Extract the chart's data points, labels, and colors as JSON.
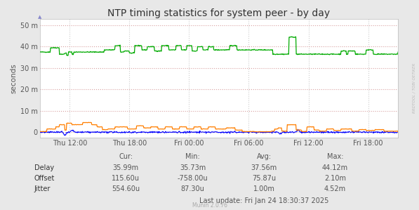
{
  "title": "NTP timing statistics for system peer - by day",
  "ylabel": "seconds",
  "background_color": "#e8e8e8",
  "plot_bg_color": "#ffffff",
  "grid_color_h": "#d8a0a0",
  "grid_color_v": "#cccccc",
  "title_fontsize": 10,
  "axis_fontsize": 7,
  "legend_fontsize": 7,
  "stats_fontsize": 7,
  "x_tick_labels": [
    "Thu 12:00",
    "Thu 18:00",
    "Fri 00:00",
    "Fri 06:00",
    "Fri 12:00",
    "Fri 18:00"
  ],
  "x_tick_positions": [
    0.0833,
    0.25,
    0.4167,
    0.5833,
    0.75,
    0.9167
  ],
  "y_ticks": [
    0,
    10000000,
    20000000,
    30000000,
    40000000,
    50000000
  ],
  "y_tick_labels": [
    "0",
    "10 m",
    "20 m",
    "30 m",
    "40 m",
    "50 m"
  ],
  "ylim": [
    -2500000,
    53000000
  ],
  "delay_color": "#00aa00",
  "offset_color": "#0000ff",
  "jitter_color": "#ff7f00",
  "watermark": "RRDTOOL / TOBI OETIKER",
  "footer": "Munin 2.0.76",
  "stats_header": [
    "Cur:",
    "Min:",
    "Avg:",
    "Max:"
  ],
  "legend_labels": [
    "Delay",
    "Offset",
    "Jitter"
  ],
  "stats": {
    "Delay": [
      "35.99m",
      "35.73m",
      "37.56m",
      "44.12m"
    ],
    "Offset": [
      "115.60u",
      "-758.00u",
      "75.87u",
      "2.10m"
    ],
    "Jitter": [
      "554.60u",
      "87.30u",
      "1.00m",
      "4.52m"
    ]
  },
  "last_update": "Last update: Fri Jan 24 18:30:37 2025"
}
